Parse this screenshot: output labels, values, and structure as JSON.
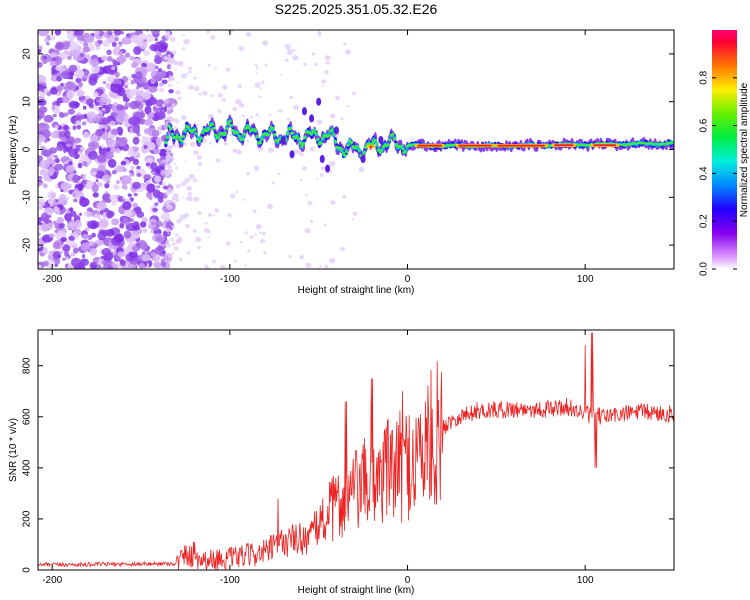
{
  "title": "S225.2025.351.05.32.E26",
  "chart_data": [
    {
      "type": "heatmap",
      "xlabel": "Height of straight line (km)",
      "ylabel": "Frequency (Hz)",
      "xlim": [
        -208,
        150
      ],
      "ylim": [
        -25,
        25
      ],
      "xticks": [
        -200,
        -100,
        0,
        100
      ],
      "yticks": [
        -20,
        -10,
        0,
        10,
        20
      ],
      "colorbar": {
        "label": "Normalized spectral amplitude",
        "range": [
          0,
          1
        ],
        "ticks": [
          0.0,
          0.2,
          0.4,
          0.6,
          0.8
        ],
        "tick_labels": [
          "0.0",
          "0.2",
          "0.4",
          "0.6",
          "0.8"
        ]
      },
      "ridge": {
        "description_points_km_hz": [
          [
            -135,
            3
          ],
          [
            -120,
            3.5
          ],
          [
            -100,
            4
          ],
          [
            -80,
            3
          ],
          [
            -60,
            2.5
          ],
          [
            -45,
            3
          ],
          [
            -35,
            0
          ],
          [
            -20,
            0.5
          ],
          [
            -10,
            1.5
          ],
          [
            0,
            0.8
          ],
          [
            20,
            0.8
          ],
          [
            50,
            0.8
          ],
          [
            100,
            1
          ],
          [
            150,
            1.3
          ]
        ]
      }
    },
    {
      "type": "line",
      "xlabel": "Height of straight line (km)",
      "ylabel": "SNR (10 * v/v)",
      "xlim": [
        -208,
        150
      ],
      "ylim": [
        0,
        940
      ],
      "xticks": [
        -200,
        -100,
        0,
        100
      ],
      "yticks": [
        0,
        200,
        400,
        600,
        800
      ],
      "color": "#ee2222",
      "envelope_points": [
        [
          -208,
          20
        ],
        [
          -130,
          25
        ],
        [
          -125,
          60
        ],
        [
          -115,
          40
        ],
        [
          -100,
          45
        ],
        [
          -80,
          70
        ],
        [
          -70,
          110
        ],
        [
          -55,
          130
        ],
        [
          -45,
          220
        ],
        [
          -35,
          280
        ],
        [
          -25,
          330
        ],
        [
          -15,
          380
        ],
        [
          -5,
          400
        ],
        [
          5,
          440
        ],
        [
          15,
          520
        ],
        [
          25,
          590
        ],
        [
          40,
          625
        ],
        [
          60,
          630
        ],
        [
          80,
          630
        ],
        [
          90,
          640
        ],
        [
          100,
          610
        ],
        [
          110,
          600
        ],
        [
          130,
          620
        ],
        [
          150,
          610
        ]
      ],
      "spikes": [
        [
          -120,
          110
        ],
        [
          -73,
          280
        ],
        [
          -35,
          660
        ],
        [
          -20,
          750
        ],
        [
          -12,
          560
        ],
        [
          -3,
          700
        ],
        [
          100,
          880
        ],
        [
          104,
          930
        ],
        [
          106,
          400
        ]
      ]
    }
  ]
}
